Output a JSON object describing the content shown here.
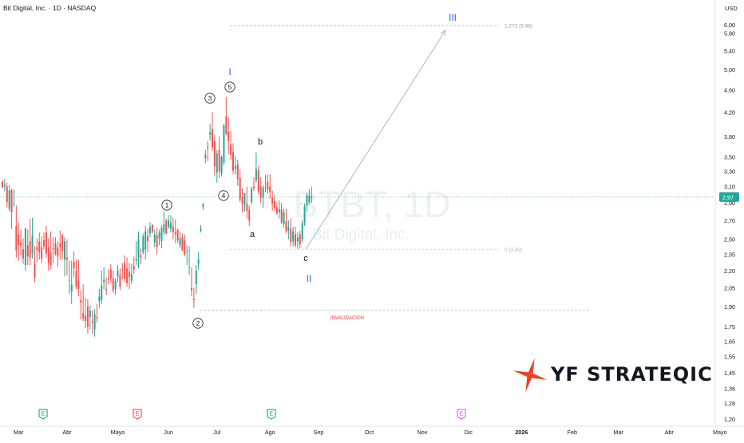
{
  "header": {
    "title": "Bit Digital, Inc. · 1D · NASDAQ",
    "currency": "USD"
  },
  "watermark": {
    "ticker": "BTBT, 1D",
    "company": "Bit Digital, Inc."
  },
  "brand": {
    "name": "YF STRATEQIC",
    "colors": {
      "mark": "#e8452a",
      "text": "#131722"
    }
  },
  "colors": {
    "up": "#26a69a",
    "down": "#ef5350",
    "wave_label": "#2962ff",
    "invalidation": "#f23645",
    "fib": "#b2b5be",
    "price_line": "#26a69a"
  },
  "chart_data": {
    "type": "candlestick",
    "price_scale": "log",
    "y_ticks": [
      "6,20",
      "6,00",
      "5,80",
      "5,40",
      "5,00",
      "4,60",
      "4,20",
      "3,80",
      "3,50",
      "3,30",
      "3,10",
      "2,90",
      "2,70",
      "2,50",
      "2,35",
      "2,20",
      "2,05",
      "1,90",
      "1,75",
      "1,65",
      "1,55",
      "1,45",
      "1,36",
      "1,28",
      "1,20"
    ],
    "x_ticks": [
      "Mar",
      "Abr",
      "Mayo",
      "Jun",
      "Jul",
      "Ago",
      "Sep",
      "Oct",
      "Nov",
      "Dic",
      "2026",
      "Feb",
      "Mar",
      "Abr",
      "Mayo",
      "Jun"
    ],
    "last_price": {
      "value": 2.97,
      "label": "2,97"
    },
    "series": [
      {
        "name": "BTBT",
        "ohlc": [
          [
            3.16,
            3.18,
            3.08,
            3.09
          ],
          [
            3.1,
            3.2,
            3.04,
            3.12
          ],
          [
            3.1,
            3.15,
            2.84,
            2.91
          ],
          [
            2.83,
            3.12,
            2.8,
            3.05
          ],
          [
            3.06,
            3.07,
            2.61,
            2.79
          ],
          [
            2.89,
            3.06,
            2.85,
            2.89
          ],
          [
            2.64,
            2.87,
            2.32,
            2.39
          ],
          [
            2.55,
            2.68,
            2.29,
            2.44
          ],
          [
            2.47,
            2.6,
            2.34,
            2.43
          ],
          [
            2.4,
            2.51,
            2.26,
            2.31
          ],
          [
            2.25,
            2.62,
            2.2,
            2.61
          ],
          [
            2.44,
            2.6,
            2.25,
            2.33
          ],
          [
            2.48,
            2.72,
            2.25,
            2.32
          ],
          [
            2.36,
            2.73,
            2.31,
            2.54
          ],
          [
            2.26,
            2.43,
            2.1,
            2.14
          ],
          [
            2.42,
            2.51,
            2.28,
            2.39
          ],
          [
            2.48,
            2.57,
            2.3,
            2.37
          ],
          [
            2.42,
            2.53,
            2.27,
            2.31
          ],
          [
            2.49,
            2.57,
            2.4,
            2.43
          ],
          [
            2.57,
            2.64,
            2.32,
            2.36
          ],
          [
            2.42,
            2.51,
            2.2,
            2.27
          ],
          [
            2.37,
            2.58,
            2.21,
            2.25
          ],
          [
            2.41,
            2.52,
            2.27,
            2.4
          ],
          [
            2.46,
            2.52,
            2.34,
            2.35
          ],
          [
            2.42,
            2.48,
            2.23,
            2.33
          ],
          [
            2.46,
            2.59,
            2.3,
            2.42
          ],
          [
            2.54,
            2.56,
            2.3,
            2.38
          ],
          [
            2.3,
            2.52,
            2.15,
            2.48
          ],
          [
            2.32,
            2.5,
            2.16,
            2.3
          ],
          [
            2.11,
            2.29,
            2.0,
            2.11
          ],
          [
            2.02,
            2.29,
            1.92,
            2.08
          ],
          [
            2.28,
            2.38,
            2.14,
            2.22
          ],
          [
            2.2,
            2.3,
            2.04,
            2.06
          ],
          [
            2.11,
            2.3,
            1.98,
            2.04
          ],
          [
            1.95,
            2.03,
            1.8,
            1.93
          ],
          [
            1.85,
            2.08,
            1.79,
            1.81
          ],
          [
            1.83,
            1.97,
            1.74,
            1.79
          ],
          [
            1.9,
            1.96,
            1.7,
            1.75
          ],
          [
            1.82,
            1.91,
            1.73,
            1.87
          ],
          [
            1.79,
            1.87,
            1.7,
            1.78
          ],
          [
            1.73,
            1.88,
            1.68,
            1.84
          ],
          [
            1.82,
            1.92,
            1.78,
            1.81
          ],
          [
            1.94,
            2.04,
            1.89,
            1.98
          ],
          [
            1.95,
            2.2,
            1.92,
            2.07
          ],
          [
            2.1,
            2.23,
            2.04,
            2.12
          ],
          [
            2.04,
            2.14,
            1.99,
            2.03
          ],
          [
            2.13,
            2.21,
            2.08,
            2.12
          ],
          [
            2.21,
            2.26,
            2.09,
            2.13
          ],
          [
            2.13,
            2.2,
            2.01,
            2.03
          ],
          [
            2.04,
            2.13,
            1.99,
            2.11
          ],
          [
            2.15,
            2.25,
            2.1,
            2.2
          ],
          [
            2.16,
            2.22,
            2.03,
            2.06
          ],
          [
            2.21,
            2.27,
            2.12,
            2.2
          ],
          [
            2.27,
            2.34,
            2.1,
            2.13
          ],
          [
            2.22,
            2.32,
            2.06,
            2.09
          ],
          [
            2.19,
            2.27,
            2.04,
            2.14
          ],
          [
            2.11,
            2.26,
            2.08,
            2.17
          ],
          [
            2.24,
            2.33,
            2.17,
            2.21
          ],
          [
            2.29,
            2.48,
            2.25,
            2.31
          ],
          [
            2.32,
            2.58,
            2.22,
            2.5
          ],
          [
            2.34,
            2.41,
            2.26,
            2.32
          ],
          [
            2.37,
            2.56,
            2.35,
            2.53
          ],
          [
            2.4,
            2.64,
            2.3,
            2.58
          ],
          [
            2.53,
            2.61,
            2.37,
            2.48
          ],
          [
            2.56,
            2.68,
            2.52,
            2.63
          ],
          [
            2.65,
            2.66,
            2.56,
            2.58
          ],
          [
            2.47,
            2.6,
            2.42,
            2.55
          ],
          [
            2.54,
            2.62,
            2.35,
            2.42
          ],
          [
            2.51,
            2.6,
            2.44,
            2.57
          ],
          [
            2.48,
            2.65,
            2.41,
            2.62
          ],
          [
            2.57,
            2.8,
            2.54,
            2.66
          ],
          [
            2.7,
            2.72,
            2.55,
            2.56
          ],
          [
            2.63,
            2.76,
            2.61,
            2.7
          ],
          [
            2.61,
            2.76,
            2.57,
            2.67
          ],
          [
            2.63,
            2.73,
            2.5,
            2.57
          ],
          [
            2.57,
            2.71,
            2.46,
            2.55
          ],
          [
            2.6,
            2.61,
            2.46,
            2.49
          ],
          [
            2.44,
            2.58,
            2.41,
            2.51
          ],
          [
            2.52,
            2.56,
            2.38,
            2.39
          ],
          [
            2.49,
            2.55,
            2.33,
            2.35
          ],
          [
            2.38,
            2.44,
            2.25,
            2.38
          ],
          [
            2.23,
            2.43,
            2.16,
            2.23
          ],
          [
            2.05,
            2.23,
            1.98,
            2.03
          ],
          [
            1.96,
            2.05,
            1.89,
            1.95
          ],
          [
            2.08,
            2.25,
            2.0,
            2.2
          ],
          [
            2.26,
            2.37,
            2.21,
            2.3
          ],
          [
            2.59,
            2.65,
            2.57,
            2.61
          ],
          [
            2.85,
            2.9,
            2.82,
            2.88
          ],
          [
            3.48,
            3.6,
            3.41,
            3.53
          ],
          [
            3.65,
            3.73,
            3.44,
            3.63
          ],
          [
            3.83,
            4.0,
            3.74,
            3.87
          ],
          [
            3.92,
            4.2,
            3.59,
            3.64
          ],
          [
            3.73,
            3.83,
            3.23,
            3.37
          ],
          [
            3.28,
            3.6,
            3.15,
            3.55
          ],
          [
            3.6,
            3.8,
            3.21,
            3.3
          ],
          [
            3.27,
            3.52,
            3.23,
            3.5
          ],
          [
            3.42,
            4.0,
            3.38,
            3.98
          ],
          [
            4.13,
            4.47,
            3.82,
            3.84
          ],
          [
            3.88,
            4.11,
            3.54,
            3.73
          ],
          [
            3.68,
            3.89,
            3.46,
            3.53
          ],
          [
            3.57,
            3.7,
            3.26,
            3.31
          ],
          [
            3.33,
            3.51,
            3.26,
            3.37
          ],
          [
            3.39,
            3.46,
            3.11,
            3.2
          ],
          [
            3.21,
            3.33,
            2.91,
            2.94
          ],
          [
            2.97,
            3.08,
            2.79,
            2.89
          ],
          [
            2.88,
            3.02,
            2.8,
            3.02
          ],
          [
            2.89,
            3.1,
            2.72,
            2.81
          ],
          [
            2.82,
            2.87,
            2.64,
            2.7
          ],
          [
            2.91,
            3.1,
            2.88,
            3.08
          ],
          [
            3.1,
            3.22,
            3.04,
            3.08
          ],
          [
            3.18,
            3.56,
            3.15,
            3.33
          ],
          [
            3.31,
            3.37,
            3.0,
            3.04
          ],
          [
            3.1,
            3.22,
            2.9,
            2.96
          ],
          [
            2.96,
            3.12,
            2.84,
            3.09
          ],
          [
            3.1,
            3.25,
            3.03,
            3.1
          ],
          [
            3.16,
            3.26,
            3.01,
            3.06
          ],
          [
            3.1,
            3.26,
            2.95,
            3.03
          ],
          [
            2.96,
            3.05,
            2.81,
            2.89
          ],
          [
            2.92,
            3.0,
            2.81,
            2.84
          ],
          [
            2.85,
            2.91,
            2.76,
            2.78
          ],
          [
            2.79,
            2.93,
            2.72,
            2.83
          ],
          [
            2.82,
            2.9,
            2.66,
            2.68
          ],
          [
            2.66,
            2.83,
            2.62,
            2.79
          ],
          [
            2.69,
            2.83,
            2.56,
            2.58
          ],
          [
            2.59,
            2.7,
            2.5,
            2.63
          ],
          [
            2.61,
            2.72,
            2.43,
            2.47
          ],
          [
            2.48,
            2.63,
            2.43,
            2.58
          ],
          [
            2.55,
            2.63,
            2.42,
            2.44
          ],
          [
            2.48,
            2.57,
            2.4,
            2.52
          ],
          [
            2.55,
            2.59,
            2.41,
            2.45
          ],
          [
            2.5,
            2.7,
            2.47,
            2.67
          ],
          [
            2.67,
            2.89,
            2.64,
            2.86
          ],
          [
            2.87,
            3.02,
            2.79,
            2.99
          ],
          [
            2.91,
            3.07,
            2.88,
            2.99
          ],
          [
            2.96,
            3.1,
            2.9,
            2.97
          ]
        ]
      }
    ],
    "wave_labels": [
      {
        "text": "I",
        "style": "blue"
      },
      {
        "text": "II",
        "style": "blue"
      },
      {
        "text": "III",
        "style": "blue"
      },
      {
        "text": "1",
        "style": "circle"
      },
      {
        "text": "2",
        "style": "circle"
      },
      {
        "text": "3",
        "style": "circle"
      },
      {
        "text": "4",
        "style": "circle"
      },
      {
        "text": "5",
        "style": "circle"
      },
      {
        "text": "a",
        "style": "plain"
      },
      {
        "text": "b",
        "style": "plain"
      },
      {
        "text": "c",
        "style": "plain"
      }
    ],
    "levels": [
      {
        "name": "fib-1272",
        "price": 5.98,
        "label": "1,272 (5,98)"
      },
      {
        "name": "fib-0",
        "price": 2.4,
        "label": "0 (2,40)"
      },
      {
        "name": "invalidation",
        "price": 1.87,
        "label": "INVALIDACION"
      }
    ],
    "projection": {
      "from_price": 2.4,
      "to_price": 5.98
    },
    "events": [
      {
        "type": "earnings",
        "glyph": "E",
        "color": "#089981"
      },
      {
        "type": "earnings",
        "glyph": "E",
        "color": "#f23645"
      },
      {
        "type": "earnings",
        "glyph": "E",
        "color": "#089981"
      },
      {
        "type": "earnings",
        "glyph": "E",
        "color": "#e040fb"
      }
    ]
  }
}
